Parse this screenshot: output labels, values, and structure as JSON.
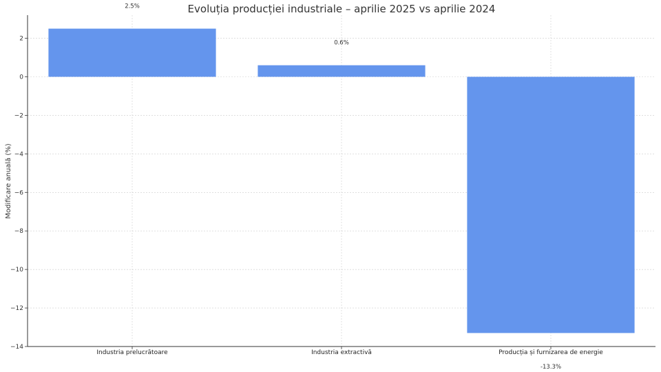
{
  "chart_data": {
    "type": "bar",
    "title": "Evoluția producției industriale – aprilie 2025 vs aprilie 2024",
    "xlabel": "",
    "ylabel": "Modificare anuală (%)",
    "categories": [
      "Industria prelucrătoare",
      "Industria extractivă",
      "Producția și furnizarea de energie"
    ],
    "values": [
      2.5,
      0.6,
      -13.3
    ],
    "data_labels": [
      "2.5%",
      "0.6%",
      "-13.3%"
    ],
    "ylim": [
      -14,
      3.2
    ],
    "yticks": [
      2,
      0,
      -2,
      -4,
      -6,
      -8,
      -10,
      -12,
      -14
    ],
    "ytick_labels": [
      "2",
      "0",
      "−2",
      "−4",
      "−6",
      "−8",
      "−10",
      "−12",
      "−14"
    ],
    "grid": true,
    "bar_color": "#6495ED"
  }
}
